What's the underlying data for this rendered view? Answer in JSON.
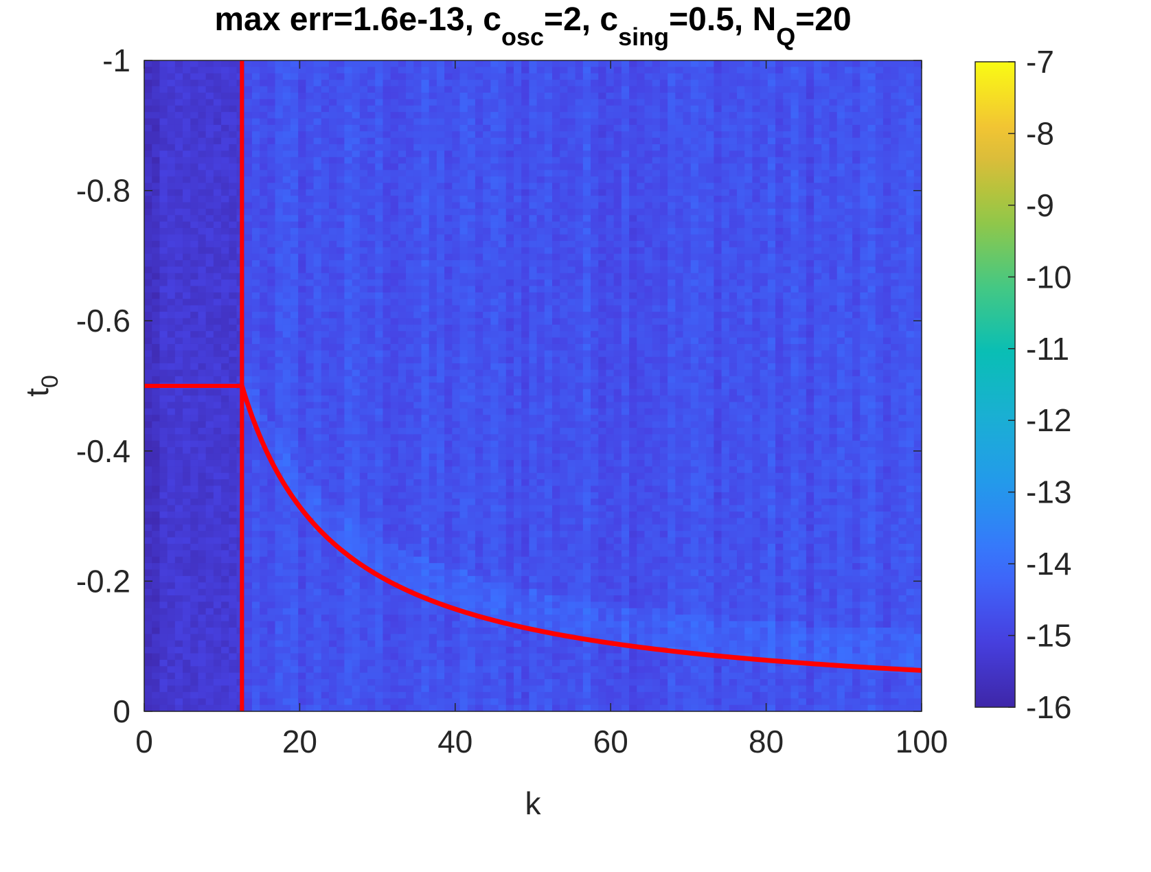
{
  "chart_data": {
    "type": "heatmap",
    "title_parts": [
      {
        "text": "max err=1.6e-13, c",
        "sub": false
      },
      {
        "text": "osc",
        "sub": true
      },
      {
        "text": "=2, c",
        "sub": false
      },
      {
        "text": "sing",
        "sub": true
      },
      {
        "text": "=0.5, N",
        "sub": false
      },
      {
        "text": "Q",
        "sub": true
      },
      {
        "text": "=20",
        "sub": false
      }
    ],
    "xlabel": "k",
    "ylabel_base": "t",
    "ylabel_sub": "0",
    "xlim": [
      0,
      100
    ],
    "ylim": [
      -1,
      0
    ],
    "y_reversed": true,
    "xticks": [
      0,
      20,
      40,
      60,
      80,
      100
    ],
    "xtick_labels": [
      "0",
      "20",
      "40",
      "60",
      "80",
      "100"
    ],
    "yticks": [
      -1,
      -0.8,
      -0.6,
      -0.4,
      -0.2,
      0
    ],
    "ytick_labels": [
      "-1",
      "-0.8",
      "-0.6",
      "-0.4",
      "-0.2",
      "0"
    ],
    "colormap": "parula",
    "colorbar": {
      "limits": [
        -16,
        -7
      ],
      "ticks": [
        -16,
        -15,
        -14,
        -13,
        -12,
        -11,
        -10,
        -9,
        -8,
        -7
      ],
      "tick_labels": [
        "-16",
        "-15",
        "-14",
        "-13",
        "-12",
        "-11",
        "-10",
        "-9",
        "-8",
        "-7"
      ]
    },
    "grid": {
      "k_count": 101,
      "t_count": 101,
      "base_log10_error": -14.7,
      "noise_amplitude": 0.45,
      "left_region_k_max": 12.6,
      "left_region_log10_error": -15.3
    },
    "overlay": {
      "color": "#ff0000",
      "vertical_line_k": 12.57,
      "horizontal_line": {
        "k_range": [
          0,
          12.57
        ],
        "t0": -0.5
      },
      "curve": {
        "formula": "t0 = -2*pi/(k*c_osc)... approx",
        "k_range": [
          12.57,
          100
        ],
        "t0_at_kmin": -0.5,
        "t0_at_kmax": -0.063
      }
    }
  }
}
